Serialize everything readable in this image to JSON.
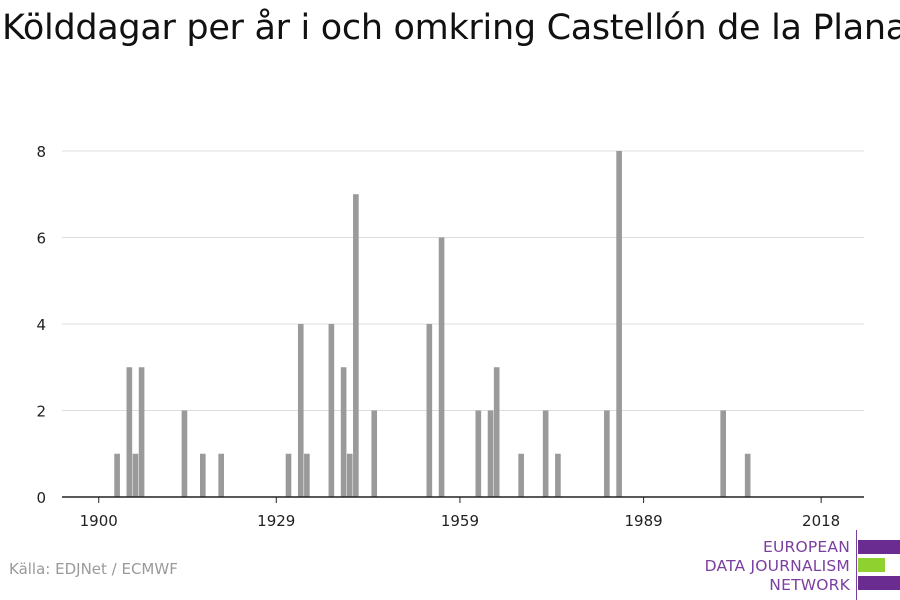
{
  "title": "Kölddagar per år i och omkring Castellón de la Plana",
  "source": "Källa: EDJNet / ECMWF",
  "logo": {
    "line1": "EUROPEAN",
    "line2": "DATA JOURNALISM",
    "line3": "NETWORK",
    "colors": {
      "purple": "#6b2c91",
      "green": "#8fd12e",
      "text": "#7b3fa0"
    }
  },
  "colors": {
    "bar": "#9a9a9a",
    "grid": "#dddddd",
    "axis": "#222222",
    "text": "#222222"
  },
  "chart_data": {
    "type": "bar",
    "title": "Kölddagar per år i och omkring Castellón de la Plana",
    "xlabel": "",
    "ylabel": "",
    "xlim": [
      1894,
      2025
    ],
    "ylim": [
      0,
      8.6
    ],
    "xticks": [
      1900,
      1929,
      1959,
      1989,
      2018
    ],
    "yticks": [
      0,
      2,
      4,
      6,
      8
    ],
    "grid": true,
    "x": [
      1900,
      1901,
      1902,
      1903,
      1904,
      1905,
      1906,
      1907,
      1908,
      1909,
      1910,
      1911,
      1912,
      1913,
      1914,
      1915,
      1916,
      1917,
      1918,
      1919,
      1920,
      1921,
      1922,
      1923,
      1924,
      1925,
      1926,
      1927,
      1928,
      1929,
      1930,
      1931,
      1932,
      1933,
      1934,
      1935,
      1936,
      1937,
      1938,
      1939,
      1940,
      1941,
      1942,
      1943,
      1944,
      1945,
      1946,
      1947,
      1948,
      1949,
      1950,
      1951,
      1952,
      1953,
      1954,
      1955,
      1956,
      1957,
      1958,
      1959,
      1960,
      1961,
      1962,
      1963,
      1964,
      1965,
      1966,
      1967,
      1968,
      1969,
      1970,
      1971,
      1972,
      1973,
      1974,
      1975,
      1976,
      1977,
      1978,
      1979,
      1980,
      1981,
      1982,
      1983,
      1984,
      1985,
      1986,
      1987,
      1988,
      1989,
      1990,
      1991,
      1992,
      1993,
      1994,
      1995,
      1996,
      1997,
      1998,
      1999,
      2000,
      2001,
      2002,
      2003,
      2004,
      2005,
      2006,
      2007,
      2008,
      2009,
      2010,
      2011,
      2012,
      2013,
      2014,
      2015,
      2016,
      2017,
      2018
    ],
    "values": [
      0,
      0,
      0,
      1,
      0,
      3,
      1,
      3,
      0,
      0,
      0,
      0,
      0,
      0,
      2,
      0,
      0,
      1,
      0,
      0,
      1,
      0,
      0,
      0,
      0,
      0,
      0,
      0,
      0,
      0,
      0,
      1,
      0,
      4,
      1,
      0,
      0,
      0,
      4,
      0,
      3,
      1,
      7,
      0,
      0,
      2,
      0,
      0,
      0,
      0,
      0,
      0,
      0,
      0,
      4,
      0,
      6,
      0,
      0,
      0,
      0,
      0,
      2,
      0,
      2,
      3,
      0,
      0,
      0,
      1,
      0,
      0,
      0,
      2,
      0,
      1,
      0,
      0,
      0,
      0,
      0,
      0,
      0,
      2,
      0,
      8,
      0,
      0,
      0,
      0,
      0,
      0,
      0,
      0,
      0,
      0,
      0,
      0,
      0,
      0,
      0,
      0,
      2,
      0,
      0,
      0,
      1,
      0,
      0,
      0,
      0,
      0,
      0,
      0,
      0,
      0,
      0,
      0,
      0
    ]
  }
}
